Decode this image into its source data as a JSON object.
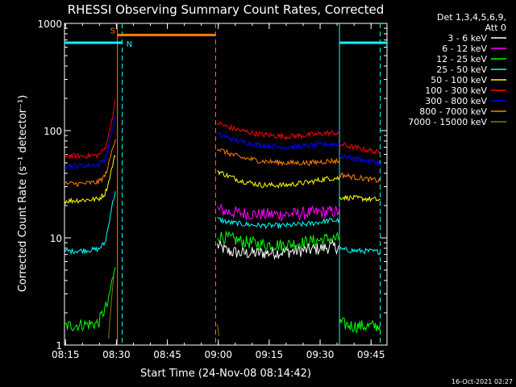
{
  "chart_data": {
    "type": "line",
    "title": "RHESSI Observing Summary Count Rates, Corrected",
    "xlabel": "Start Time (24-Nov-08 08:14:42)",
    "ylabel": "Corrected Count Rate (s⁻¹ detector⁻¹)",
    "x_units": "minutes since 08:14:42",
    "xlim": [
      0,
      95
    ],
    "ylim": [
      1,
      1000
    ],
    "y_scale": "log",
    "x_ticks": [
      {
        "value": 0.3,
        "label": "08:15"
      },
      {
        "value": 15.3,
        "label": "08:30"
      },
      {
        "value": 30.3,
        "label": "08:45"
      },
      {
        "value": 45.3,
        "label": "09:00"
      },
      {
        "value": 60.3,
        "label": "09:15"
      },
      {
        "value": 75.3,
        "label": "09:30"
      },
      {
        "value": 90.3,
        "label": "09:45"
      }
    ],
    "y_ticks": [
      {
        "value": 1,
        "label": "1"
      },
      {
        "value": 10,
        "label": "10"
      },
      {
        "value": 100,
        "label": "100"
      },
      {
        "value": 1000,
        "label": "1000"
      }
    ],
    "legend": {
      "header_lines": [
        "Det 1,3,4,5,6,9,",
        "Att 0"
      ],
      "placement": "right"
    },
    "series": [
      {
        "name": "3 - 6 keV",
        "color": "#ffffff",
        "segments": [
          {
            "x": [
              45,
              48,
              52,
              58,
              65,
              72,
              78,
              81
            ],
            "y": [
              8.5,
              7.5,
              7.2,
              7.2,
              7.4,
              7.7,
              8.2,
              8.2
            ]
          }
        ]
      },
      {
        "name": "6 - 12 keV",
        "color": "#ff00ff",
        "segments": [
          {
            "x": [
              45,
              48,
              52,
              58,
              65,
              72,
              78,
              81
            ],
            "y": [
              18.5,
              17.5,
              17,
              16.5,
              16.5,
              17,
              17.5,
              17.5
            ]
          }
        ]
      },
      {
        "name": "12 - 25 keV",
        "color": "#00ff00",
        "segments": [
          {
            "x": [
              0,
              10,
              13,
              14,
              15
            ],
            "y": [
              1.5,
              1.6,
              2.5,
              4,
              5
            ]
          },
          {
            "x": [
              45,
              48,
              52,
              58,
              65,
              72,
              78,
              81
            ],
            "y": [
              10.5,
              10,
              9.3,
              8.7,
              8.6,
              9.2,
              9.8,
              9.8
            ]
          },
          {
            "x": [
              81,
              85,
              90,
              93
            ],
            "y": [
              1.6,
              1.5,
              1.5,
              1.5
            ]
          }
        ]
      },
      {
        "name": "25 - 50 keV",
        "color": "#00ffff",
        "segments": [
          {
            "x": [
              0,
              5,
              10,
              12,
              13,
              14,
              15
            ],
            "y": [
              7.5,
              7.6,
              7.8,
              9,
              13,
              20,
              27
            ]
          },
          {
            "x": [
              45,
              48,
              52,
              58,
              65,
              72,
              78,
              81
            ],
            "y": [
              15,
              14,
              13.5,
              13,
              13,
              13.5,
              14.5,
              14.5
            ]
          },
          {
            "x": [
              81,
              85,
              90,
              93
            ],
            "y": [
              7.8,
              7.6,
              7.5,
              7.4
            ]
          }
        ]
      },
      {
        "name": "50 - 100 keV",
        "color": "#ffff00",
        "segments": [
          {
            "x": [
              0,
              5,
              10,
              12,
              13,
              14,
              15
            ],
            "y": [
              22,
              22.5,
              23,
              26,
              33,
              45,
              60
            ]
          },
          {
            "x": [
              45,
              48,
              52,
              58,
              65,
              72,
              78,
              81
            ],
            "y": [
              42,
              38,
              34,
              31,
              31,
              33,
              36,
              36
            ]
          },
          {
            "x": [
              81,
              85,
              90,
              93
            ],
            "y": [
              24,
              23.5,
              23,
              22.5
            ]
          }
        ]
      },
      {
        "name": "100 - 300 keV",
        "color": "#ff0000",
        "segments": [
          {
            "x": [
              0,
              5,
              10,
              12,
              13,
              14,
              15
            ],
            "y": [
              58,
              58,
              59,
              68,
              90,
              130,
              185
            ]
          },
          {
            "x": [
              45,
              48,
              52,
              58,
              65,
              72,
              78,
              81
            ],
            "y": [
              118,
              108,
              100,
              92,
              88,
              91,
              95,
              95
            ]
          },
          {
            "x": [
              81,
              85,
              90,
              93
            ],
            "y": [
              75,
              70,
              65,
              62
            ]
          }
        ]
      },
      {
        "name": "300 - 800 keV",
        "color": "#0000ff",
        "segments": [
          {
            "x": [
              0,
              5,
              10,
              12,
              13,
              14,
              15
            ],
            "y": [
              47,
              47,
              48,
              55,
              70,
              100,
              140
            ]
          },
          {
            "x": [
              45,
              48,
              52,
              58,
              65,
              72,
              78,
              81
            ],
            "y": [
              93,
              86,
              79,
              73,
              70,
              72,
              75,
              75
            ]
          },
          {
            "x": [
              81,
              85,
              90,
              93
            ],
            "y": [
              58,
              55,
              52,
              50
            ]
          }
        ]
      },
      {
        "name": "800 - 7000 keV",
        "color": "#ff7f00",
        "segments": [
          {
            "x": [
              0,
              5,
              10,
              12,
              13,
              14,
              15
            ],
            "y": [
              32,
              32,
              33,
              38,
              48,
              65,
              85
            ]
          },
          {
            "x": [
              45,
              48,
              52,
              58,
              65,
              72,
              78,
              81
            ],
            "y": [
              68,
              62,
              56,
              52,
              50,
              50,
              52,
              52
            ]
          },
          {
            "x": [
              81,
              85,
              90,
              93
            ],
            "y": [
              39,
              37,
              35,
              34
            ]
          }
        ]
      },
      {
        "name": "7000 - 15000 keV",
        "color": "#7f7f00",
        "segments": [
          {
            "x": [
              13,
              13.5,
              14,
              14.5
            ],
            "y": [
              1.2,
              1.8,
              3,
              4.5
            ]
          },
          {
            "x": [
              45,
              45.5
            ],
            "y": [
              1.5,
              1.2
            ]
          }
        ]
      }
    ],
    "vertical_markers": [
      {
        "x": 15.6,
        "color": "#ff7f00",
        "style": "solid"
      },
      {
        "x": 17,
        "color": "#00ffff",
        "style": "dashed"
      },
      {
        "x": 44.5,
        "color": "#ff7f00",
        "style": "dashed"
      },
      {
        "x": 81,
        "color": "#00ffff",
        "style": "solid"
      },
      {
        "x": 93,
        "color": "#00ffff",
        "style": "dashed"
      }
    ],
    "spans": [
      {
        "label": "S",
        "x_start": 15.6,
        "x_end": 44.5,
        "y": 780,
        "color": "#ff7f00"
      },
      {
        "label": "N",
        "x_start": 0,
        "x_end": 17,
        "y": 660,
        "color": "#00ffff"
      },
      {
        "label": "",
        "x_start": 81,
        "x_end": 95,
        "y": 660,
        "color": "#00ffff"
      }
    ],
    "footer_date": "16-Oct-2021 02:27"
  }
}
